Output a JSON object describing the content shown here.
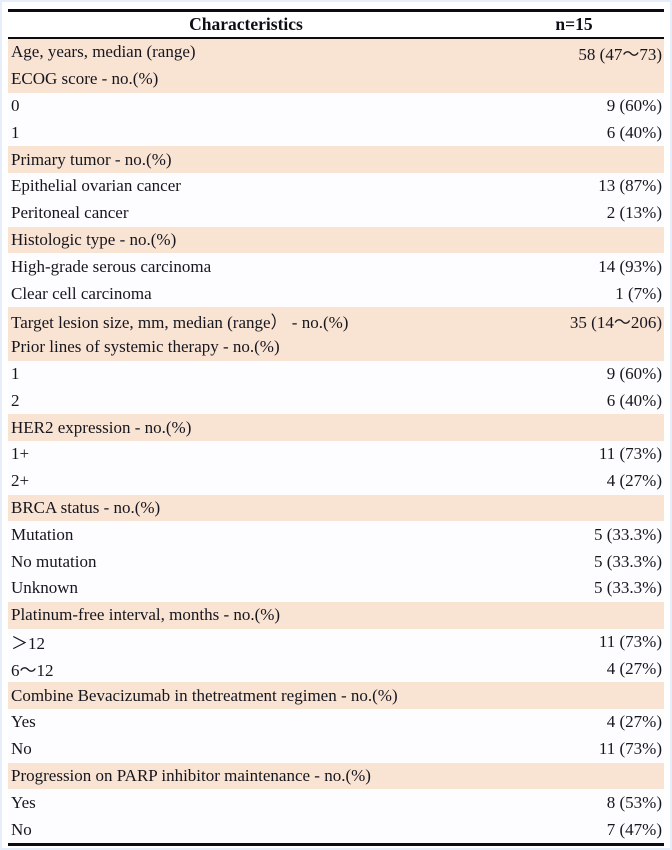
{
  "colors": {
    "highlight_row": "#f9e3d3",
    "plain_row": "#fdfdff",
    "rule": "#0c0c10",
    "text": "#16161f"
  },
  "table": {
    "header": {
      "characteristics": "Characteristics",
      "n": "n=15"
    },
    "rows": [
      {
        "label": "Age, years, median (range)",
        "value": "58 (47～73)",
        "highlight": true
      },
      {
        "label": "ECOG score - no.(%)",
        "value": "",
        "highlight": true
      },
      {
        "label": "0",
        "value": "9 (60%)",
        "highlight": false
      },
      {
        "label": "1",
        "value": "6 (40%)",
        "highlight": false
      },
      {
        "label": "Primary tumor  - no.(%)",
        "value": "",
        "highlight": true
      },
      {
        "label": "Epithelial ovarian cancer",
        "value": "13 (87%)",
        "highlight": false
      },
      {
        "label": "Peritoneal cancer",
        "value": "2 (13%)",
        "highlight": false
      },
      {
        "label": "Histologic type - no.(%)",
        "value": "",
        "highlight": true
      },
      {
        "label": "High-grade serous carcinoma",
        "value": "14 (93%)",
        "highlight": false
      },
      {
        "label": "Clear cell carcinoma",
        "value": "1 (7%)",
        "highlight": false
      },
      {
        "label": "Target lesion size, mm, median (range） - no.(%)",
        "value": "35 (14～206)",
        "highlight": true
      },
      {
        "label": "Prior lines of systemic therapy - no.(%)",
        "value": "",
        "highlight": true
      },
      {
        "label": "1",
        "value": "9 (60%)",
        "highlight": false
      },
      {
        "label": "2",
        "value": "6 (40%)",
        "highlight": false
      },
      {
        "label": "HER2 expression - no.(%)",
        "value": "",
        "highlight": true
      },
      {
        "label": "1+",
        "value": "11 (73%)",
        "highlight": false
      },
      {
        "label": "2+",
        "value": "4 (27%)",
        "highlight": false
      },
      {
        "label": "BRCA status - no.(%)",
        "value": "",
        "highlight": true
      },
      {
        "label": "Mutation",
        "value": "5 (33.3%)",
        "highlight": false
      },
      {
        "label": "No mutation",
        "value": "5 (33.3%)",
        "highlight": false
      },
      {
        "label": "Unknown",
        "value": "5 (33.3%)",
        "highlight": false
      },
      {
        "label": "Platinum-free interval, months - no.(%)",
        "value": "",
        "highlight": true
      },
      {
        "label": "＞12",
        "value": "11 (73%)",
        "highlight": false
      },
      {
        "label": "6～12",
        "value": "4 (27%)",
        "highlight": false
      },
      {
        "label": "Combine Bevacizumab in thetreatment regimen - no.(%)",
        "value": "",
        "highlight": true
      },
      {
        "label": "Yes",
        "value": "4 (27%)",
        "highlight": false
      },
      {
        "label": "No",
        "value": "11 (73%)",
        "highlight": false
      },
      {
        "label": "Progression on PARP inhibitor maintenance - no.(%)",
        "value": "",
        "highlight": true
      },
      {
        "label": "Yes",
        "value": "8 (53%)",
        "highlight": false
      },
      {
        "label": "No",
        "value": "7 (47%)",
        "highlight": false
      }
    ]
  }
}
